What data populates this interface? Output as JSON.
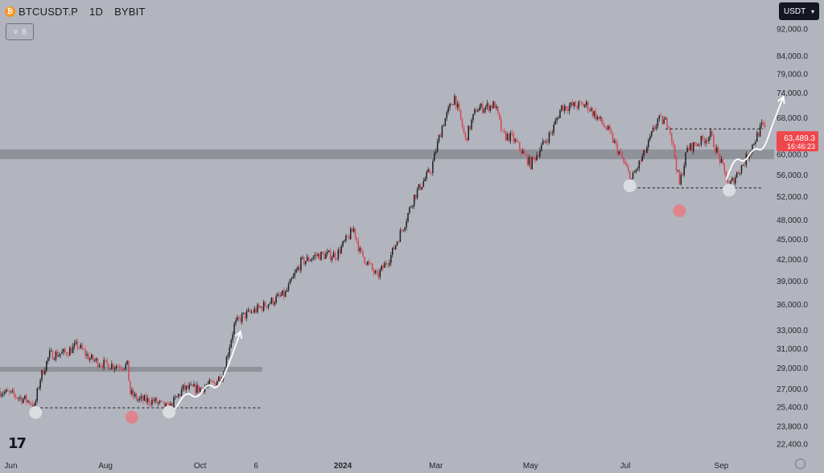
{
  "header": {
    "symbol": "BTCUSDT.P",
    "interval": "1D",
    "exchange": "BYBIT",
    "indicator_count": "8",
    "currency": "USDT"
  },
  "colors": {
    "background": "#b2b5be",
    "bull": "#1e1e1e",
    "bear": "#d64550",
    "zone": "#8f9299",
    "price_label": "#f0464d"
  },
  "price_label": {
    "price": "63,489.3",
    "countdown": "16:46:23"
  },
  "chart_data": {
    "type": "candlestick",
    "title": "",
    "y_scale": "log",
    "y_ticks": [
      {
        "v": 92000,
        "label": "92,000.0"
      },
      {
        "v": 84000,
        "label": "84,000.0"
      },
      {
        "v": 79000,
        "label": "79,000.0"
      },
      {
        "v": 74000,
        "label": "74,000.0"
      },
      {
        "v": 68000,
        "label": "68,000.0"
      },
      {
        "v": 64000,
        "label": "64,000.0"
      },
      {
        "v": 60000,
        "label": "60,000.0"
      },
      {
        "v": 56000,
        "label": "56,000.0"
      },
      {
        "v": 52000,
        "label": "52,000.0"
      },
      {
        "v": 48000,
        "label": "48,000.0"
      },
      {
        "v": 45000,
        "label": "45,000.0"
      },
      {
        "v": 42000,
        "label": "42,000.0"
      },
      {
        "v": 39000,
        "label": "39,000.0"
      },
      {
        "v": 36000,
        "label": "36,000.0"
      },
      {
        "v": 33000,
        "label": "33,000.0"
      },
      {
        "v": 31000,
        "label": "31,000.0"
      },
      {
        "v": 29000,
        "label": "29,000.0"
      },
      {
        "v": 27000,
        "label": "27,000.0"
      },
      {
        "v": 25400,
        "label": "25,400.0"
      },
      {
        "v": 23800,
        "label": "23,800.0"
      },
      {
        "v": 22400,
        "label": "22,400.0"
      }
    ],
    "x_range": [
      "2023-05-25",
      "2024-10-05"
    ],
    "x_ticks": [
      {
        "date": "2023-06-01",
        "label": "Jun",
        "bold": false
      },
      {
        "date": "2023-08-01",
        "label": "Aug",
        "bold": false
      },
      {
        "date": "2023-10-01",
        "label": "Oct",
        "bold": false
      },
      {
        "date": "2023-11-06",
        "label": "6",
        "bold": false
      },
      {
        "date": "2024-01-01",
        "label": "2024",
        "bold": true
      },
      {
        "date": "2024-03-01",
        "label": "Mar",
        "bold": false
      },
      {
        "date": "2024-05-01",
        "label": "May",
        "bold": false
      },
      {
        "date": "2024-07-01",
        "label": "Jul",
        "bold": false
      },
      {
        "date": "2024-09-01",
        "label": "Sep",
        "bold": false
      }
    ],
    "price_path": [
      [
        "2023-05-25",
        26800
      ],
      [
        "2023-06-03",
        26400
      ],
      [
        "2023-06-14",
        25800
      ],
      [
        "2023-06-16",
        25200
      ],
      [
        "2023-06-20",
        28000
      ],
      [
        "2023-06-26",
        30300
      ],
      [
        "2023-07-06",
        30500
      ],
      [
        "2023-07-14",
        31300
      ],
      [
        "2023-07-22",
        29900
      ],
      [
        "2023-08-01",
        29300
      ],
      [
        "2023-08-15",
        29200
      ],
      [
        "2023-08-17",
        26600
      ],
      [
        "2023-08-22",
        26000
      ],
      [
        "2023-09-01",
        25900
      ],
      [
        "2023-09-11",
        25200
      ],
      [
        "2023-09-20",
        27000
      ],
      [
        "2023-09-30",
        27000
      ],
      [
        "2023-10-10",
        27500
      ],
      [
        "2023-10-16",
        28500
      ],
      [
        "2023-10-23",
        33500
      ],
      [
        "2023-10-28",
        34500
      ],
      [
        "2023-11-08",
        35500
      ],
      [
        "2023-11-25",
        37300
      ],
      [
        "2023-12-05",
        41500
      ],
      [
        "2023-12-15",
        42500
      ],
      [
        "2023-12-28",
        42600
      ],
      [
        "2024-01-08",
        46500
      ],
      [
        "2024-01-12",
        43000
      ],
      [
        "2024-01-23",
        39500
      ],
      [
        "2024-02-01",
        42500
      ],
      [
        "2024-02-10",
        47500
      ],
      [
        "2024-02-16",
        52000
      ],
      [
        "2024-02-27",
        57000
      ],
      [
        "2024-03-05",
        66000
      ],
      [
        "2024-03-13",
        73000
      ],
      [
        "2024-03-20",
        63000
      ],
      [
        "2024-03-27",
        70000
      ],
      [
        "2024-04-08",
        71000
      ],
      [
        "2024-04-13",
        64000
      ],
      [
        "2024-04-19",
        63500
      ],
      [
        "2024-05-01",
        58000
      ],
      [
        "2024-05-15",
        65000
      ],
      [
        "2024-05-21",
        70500
      ],
      [
        "2024-06-06",
        71000
      ],
      [
        "2024-06-20",
        65000
      ],
      [
        "2024-07-05",
        55000
      ],
      [
        "2024-07-14",
        60500
      ],
      [
        "2024-07-22",
        67500
      ],
      [
        "2024-07-29",
        66800
      ],
      [
        "2024-08-05",
        54000
      ],
      [
        "2024-08-10",
        61000
      ],
      [
        "2024-08-25",
        64000
      ],
      [
        "2024-09-06",
        53800
      ],
      [
        "2024-09-16",
        58500
      ],
      [
        "2024-09-27",
        66000
      ],
      [
        "2024-09-29",
        65500
      ]
    ],
    "zones": [
      {
        "from": "2023-05-25",
        "to": "2023-11-10",
        "y_low": 28600,
        "y_high": 29100
      },
      {
        "from": "2023-05-25",
        "to": "2024-10-05",
        "y_low": 59000,
        "y_high": 61000
      }
    ],
    "dashed_levels": [
      {
        "from": "2023-06-17",
        "to": "2023-11-10",
        "y": 25300
      },
      {
        "from": "2024-07-03",
        "to": "2024-10-05",
        "y": 53500
      },
      {
        "from": "2024-07-27",
        "to": "2024-10-05",
        "y": 65400
      }
    ],
    "markers": [
      {
        "date": "2023-06-17",
        "y": 24900,
        "color": "#dadce0"
      },
      {
        "date": "2023-08-18",
        "y": 24500,
        "color": "#e0848c"
      },
      {
        "date": "2023-09-11",
        "y": 24950,
        "color": "#dadce0"
      },
      {
        "date": "2024-07-04",
        "y": 53900,
        "color": "#dadce0"
      },
      {
        "date": "2024-08-05",
        "y": 49500,
        "color": "#e0848c"
      },
      {
        "date": "2024-09-06",
        "y": 53100,
        "color": "#dadce0"
      }
    ],
    "projection_arrows": [
      [
        [
          "2023-09-15",
          25200
        ],
        [
          "2023-09-22",
          26800
        ],
        [
          "2023-09-29",
          26000
        ],
        [
          "2023-10-06",
          27600
        ],
        [
          "2023-10-12",
          26800
        ],
        [
          "2023-10-20",
          29500
        ],
        [
          "2023-10-27",
          32800
        ]
      ],
      [
        [
          "2024-09-04",
          55000
        ],
        [
          "2024-09-10",
          59500
        ],
        [
          "2024-09-16",
          58200
        ],
        [
          "2024-09-22",
          61500
        ],
        [
          "2024-09-28",
          60500
        ],
        [
          "2024-10-04",
          66500
        ],
        [
          "2024-10-11",
          73000
        ]
      ]
    ]
  }
}
